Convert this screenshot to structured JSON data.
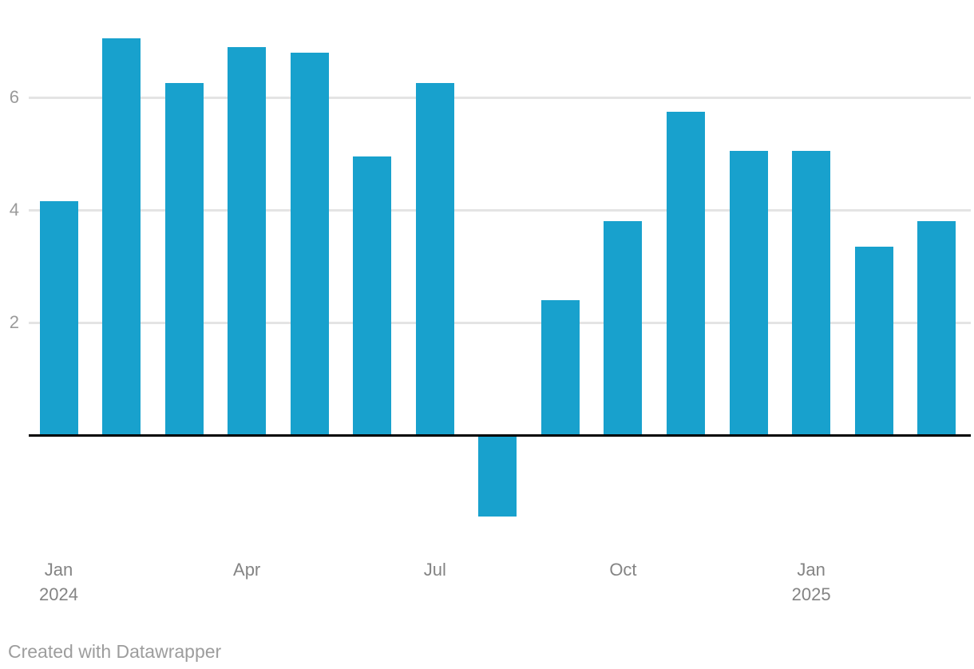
{
  "chart_data": {
    "type": "bar",
    "x": [
      "Jan 2024",
      "Feb 2024",
      "Mar 2024",
      "Apr 2024",
      "May 2024",
      "Jun 2024",
      "Jul 2024",
      "Aug 2024",
      "Sep 2024",
      "Oct 2024",
      "Nov 2024",
      "Dec 2024",
      "Jan 2025",
      "Feb 2025",
      "Mar 2025"
    ],
    "values": [
      4.15,
      7.05,
      6.25,
      6.9,
      6.8,
      4.95,
      6.25,
      -1.45,
      2.4,
      3.8,
      5.75,
      5.05,
      5.05,
      3.35,
      3.8
    ],
    "y_ticks": [
      2,
      4,
      6
    ],
    "x_tick_marks": [
      {
        "index": 0,
        "lines": [
          "Jan",
          "2024"
        ]
      },
      {
        "index": 3,
        "lines": [
          "Apr"
        ]
      },
      {
        "index": 6,
        "lines": [
          "Jul"
        ]
      },
      {
        "index": 9,
        "lines": [
          "Oct"
        ]
      },
      {
        "index": 12,
        "lines": [
          "Jan",
          "2025"
        ]
      }
    ],
    "baseline_value": 0,
    "ylim": [
      -1.6,
      7.73
    ],
    "grid": true,
    "legend": "none",
    "colors": {
      "bar": "#18a1cd",
      "grid": "#e4e4e4",
      "baseline": "#000000",
      "y_tick_label": "#9a9a9a",
      "x_tick_label": "#848484",
      "attribution": "#9d9d9d"
    }
  },
  "footer": {
    "attribution": "Created with Datawrapper"
  }
}
